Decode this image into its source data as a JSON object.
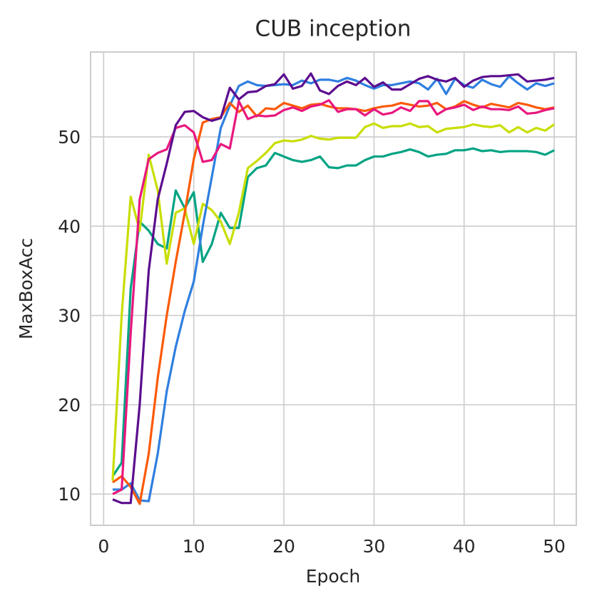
{
  "chart_data": {
    "type": "line",
    "title": "CUB inception",
    "x_label": "Epoch",
    "y_label": "MaxBoxAcc",
    "x": [
      1,
      2,
      3,
      4,
      5,
      6,
      7,
      8,
      9,
      10,
      11,
      12,
      13,
      14,
      15,
      16,
      17,
      18,
      19,
      20,
      21,
      22,
      23,
      24,
      25,
      26,
      27,
      28,
      29,
      30,
      31,
      32,
      33,
      34,
      35,
      36,
      37,
      38,
      39,
      40,
      41,
      42,
      43,
      44,
      45,
      46,
      47,
      48,
      49,
      50
    ],
    "series": [
      {
        "color": "#00a383",
        "values": [
          12,
          13.5,
          33,
          40.5,
          39.5,
          38,
          37.5,
          44,
          42,
          43.8,
          36,
          38,
          41.5,
          39.8,
          39.8,
          45.5,
          46.5,
          46.8,
          48.2,
          47.8,
          47.4,
          47.2,
          47.4,
          47.8,
          46.6,
          46.5,
          46.8,
          46.8,
          47.4,
          47.8,
          47.8,
          48.1,
          48.3,
          48.6,
          48.3,
          47.8,
          48,
          48.1,
          48.5,
          48.5,
          48.7,
          48.4,
          48.5,
          48.3,
          48.4,
          48.4,
          48.4,
          48.3,
          48,
          48.5
        ]
      },
      {
        "color": "#c8de00",
        "values": [
          11.5,
          30,
          43.3,
          39.5,
          48,
          44,
          35.8,
          41.5,
          42,
          38,
          42.5,
          41.8,
          40.5,
          38,
          41.5,
          46.5,
          47.3,
          48.2,
          49.3,
          49.6,
          49.5,
          49.7,
          50.1,
          49.8,
          49.7,
          49.9,
          49.9,
          49.9,
          51.1,
          51.5,
          51,
          51.2,
          51.2,
          51.5,
          51.1,
          51.2,
          50.5,
          50.9,
          51,
          51.1,
          51.4,
          51.2,
          51.1,
          51.3,
          50.5,
          51.1,
          50.5,
          51,
          50.7,
          51.4
        ]
      },
      {
        "color": "#2f7fe0",
        "values": [
          10.5,
          10.5,
          11.2,
          9.3,
          9.2,
          14.5,
          21.5,
          26.5,
          30.5,
          33.8,
          40,
          45.5,
          51,
          53.5,
          55.7,
          56.2,
          55.8,
          55.7,
          55.8,
          55.9,
          55.8,
          56.3,
          56,
          56.4,
          56.4,
          56.2,
          56.6,
          56.3,
          55.8,
          55.4,
          55.8,
          55.8,
          56,
          56.2,
          56,
          55.3,
          56.5,
          54.8,
          56.5,
          55.8,
          55.5,
          56.4,
          55.9,
          55.6,
          56.8,
          56,
          55.3,
          56,
          55.7,
          56
        ]
      },
      {
        "color": "#fc5a07",
        "values": [
          11.3,
          12,
          10.8,
          8.9,
          14.5,
          23,
          30,
          36,
          41.5,
          47.5,
          51.6,
          52,
          52.2,
          53.8,
          52.8,
          53.5,
          52.3,
          53.2,
          53.1,
          53.8,
          53.5,
          53.2,
          53.6,
          53.7,
          53.4,
          53.2,
          53.2,
          53.1,
          52.9,
          53.2,
          53.4,
          53.5,
          53.8,
          53.6,
          53.4,
          53.5,
          53.8,
          53.1,
          53.4,
          54,
          53.6,
          53.3,
          53.7,
          53.5,
          53.3,
          53.8,
          53.6,
          53.3,
          53.1,
          53.3
        ]
      },
      {
        "color": "#e8177e",
        "values": [
          10,
          10.5,
          28,
          43,
          47.5,
          48.2,
          48.6,
          51,
          51.3,
          50.5,
          47.2,
          47.4,
          49.2,
          48.7,
          54,
          52,
          52.4,
          52.3,
          52.4,
          53,
          53.3,
          52.9,
          53.4,
          53.6,
          54.1,
          52.8,
          53.1,
          53.1,
          52.4,
          53.1,
          52.5,
          52.7,
          53.3,
          52.9,
          54,
          54,
          52.5,
          53.1,
          53.3,
          53.6,
          53,
          53.4,
          53.1,
          53.1,
          53,
          53.4,
          52.6,
          52.7,
          53,
          53.2
        ]
      },
      {
        "color": "#5c0d8f",
        "values": [
          9.4,
          9,
          9,
          20,
          35,
          43,
          47,
          51.3,
          52.8,
          52.9,
          52.2,
          51.8,
          52.1,
          55.5,
          54.2,
          55,
          55.1,
          55.7,
          55.9,
          57,
          55.4,
          55.7,
          57.1,
          55.2,
          54.8,
          55.7,
          56.2,
          55.8,
          56.6,
          55.6,
          56.1,
          55.3,
          55.3,
          55.9,
          56.5,
          56.8,
          56.4,
          56.2,
          56.6,
          55.6,
          56.3,
          56.7,
          56.8,
          56.8,
          56.9,
          57,
          56.2,
          56.3,
          56.4,
          56.6
        ]
      }
    ],
    "xlim": [
      -1.45,
      52.45
    ],
    "ylim": [
      6.5,
      59.5
    ],
    "xticks": [
      0,
      10,
      20,
      30,
      40,
      50
    ],
    "yticks": [
      10,
      20,
      30,
      40,
      50
    ],
    "grid": true
  }
}
